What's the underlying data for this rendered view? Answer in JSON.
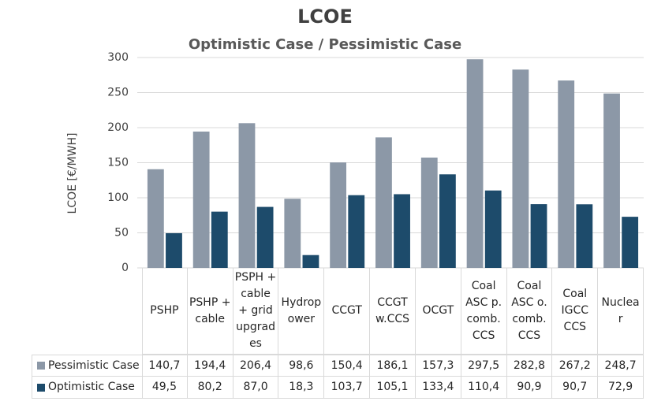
{
  "chart_data": {
    "type": "bar",
    "title": "LCOE",
    "subtitle": "Optimistic Case / Pessimistic Case",
    "y_label": "LCOE [€/MWH]",
    "categories": [
      "PSHP",
      "PSHP + cable",
      "PSPH + cable + grid upgrades",
      "Hydropower",
      "CCGT",
      "CCGT w.CCS",
      "OCGT",
      "Coal ASC p. comb. CCS",
      "Coal ASC o. comb. CCS",
      "Coal IGCC CCS",
      "Nuclear"
    ],
    "series": [
      {
        "name": "Pessimistic Case",
        "color": "#8c98a7",
        "values": [
          140.7,
          194.4,
          206.4,
          98.6,
          150.4,
          186.1,
          157.3,
          297.5,
          282.8,
          267.2,
          248.7
        ],
        "value_labels": [
          "140,7",
          "194,4",
          "206,4",
          "98,6",
          "150,4",
          "186,1",
          "157,3",
          "297,5",
          "282,8",
          "267,2",
          "248,7"
        ]
      },
      {
        "name": "Optimistic Case",
        "color": "#1d4b6b",
        "values": [
          49.5,
          80.2,
          87.0,
          18.3,
          103.7,
          105.1,
          133.4,
          110.4,
          90.9,
          90.7,
          72.9
        ],
        "value_labels": [
          "49,5",
          "80,2",
          "87,0",
          "18,3",
          "103,7",
          "105,1",
          "133,4",
          "110,4",
          "90,9",
          "90,7",
          "72,9"
        ]
      }
    ],
    "ylim": [
      0,
      300
    ],
    "yticks": [
      0,
      50,
      100,
      150,
      200,
      250,
      300
    ],
    "grid": true
  }
}
